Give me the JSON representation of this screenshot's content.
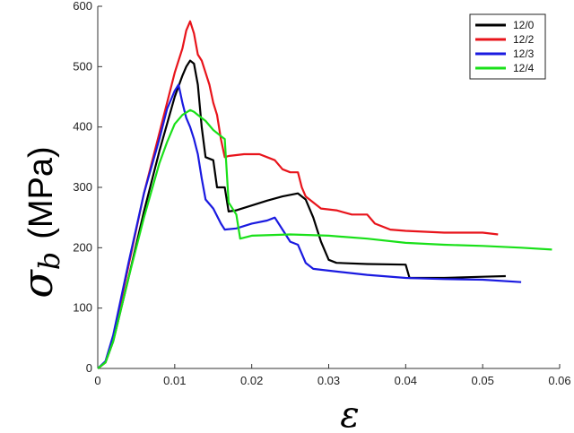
{
  "chart_data": {
    "type": "line",
    "ylabel": {
      "symbol": "σ",
      "subscript": "b",
      "unit": "(MPa)"
    },
    "xlabel": "ε",
    "xlim": [
      0,
      0.06
    ],
    "ylim": [
      0,
      600
    ],
    "xticks": [
      "0",
      "0.01",
      "0.02",
      "0.03",
      "0.04",
      "0.05",
      "0.06"
    ],
    "yticks": [
      "0",
      "100",
      "200",
      "300",
      "400",
      "500",
      "600"
    ],
    "legend_position": "top-right",
    "series": [
      {
        "name": "12/0",
        "color": "#000000",
        "points": [
          [
            0,
            0
          ],
          [
            0.001,
            10
          ],
          [
            0.002,
            45
          ],
          [
            0.004,
            150
          ],
          [
            0.006,
            260
          ],
          [
            0.008,
            360
          ],
          [
            0.01,
            450
          ],
          [
            0.011,
            485
          ],
          [
            0.0115,
            500
          ],
          [
            0.012,
            510
          ],
          [
            0.0125,
            505
          ],
          [
            0.013,
            470
          ],
          [
            0.0135,
            400
          ],
          [
            0.014,
            350
          ],
          [
            0.015,
            345
          ],
          [
            0.0155,
            300
          ],
          [
            0.0165,
            300
          ],
          [
            0.017,
            260
          ],
          [
            0.018,
            262
          ],
          [
            0.02,
            270
          ],
          [
            0.022,
            278
          ],
          [
            0.024,
            285
          ],
          [
            0.026,
            290
          ],
          [
            0.027,
            280
          ],
          [
            0.028,
            250
          ],
          [
            0.029,
            210
          ],
          [
            0.03,
            180
          ],
          [
            0.031,
            175
          ],
          [
            0.035,
            173
          ],
          [
            0.04,
            172
          ],
          [
            0.0405,
            150
          ],
          [
            0.045,
            150
          ],
          [
            0.05,
            152
          ],
          [
            0.053,
            153
          ]
        ]
      },
      {
        "name": "12/2",
        "color": "#e8141b",
        "points": [
          [
            0,
            0
          ],
          [
            0.001,
            10
          ],
          [
            0.002,
            50
          ],
          [
            0.004,
            170
          ],
          [
            0.006,
            290
          ],
          [
            0.008,
            390
          ],
          [
            0.01,
            490
          ],
          [
            0.011,
            530
          ],
          [
            0.0115,
            560
          ],
          [
            0.012,
            575
          ],
          [
            0.0125,
            555
          ],
          [
            0.013,
            520
          ],
          [
            0.0135,
            510
          ],
          [
            0.014,
            490
          ],
          [
            0.0145,
            470
          ],
          [
            0.015,
            440
          ],
          [
            0.0155,
            420
          ],
          [
            0.016,
            380
          ],
          [
            0.0165,
            350
          ],
          [
            0.017,
            352
          ],
          [
            0.019,
            355
          ],
          [
            0.021,
            355
          ],
          [
            0.022,
            350
          ],
          [
            0.023,
            345
          ],
          [
            0.024,
            330
          ],
          [
            0.025,
            325
          ],
          [
            0.026,
            325
          ],
          [
            0.0265,
            300
          ],
          [
            0.027,
            285
          ],
          [
            0.029,
            265
          ],
          [
            0.031,
            262
          ],
          [
            0.033,
            255
          ],
          [
            0.035,
            255
          ],
          [
            0.036,
            240
          ],
          [
            0.038,
            230
          ],
          [
            0.04,
            228
          ],
          [
            0.045,
            225
          ],
          [
            0.05,
            225
          ],
          [
            0.052,
            222
          ]
        ]
      },
      {
        "name": "12/3",
        "color": "#1a1ae0",
        "points": [
          [
            0,
            0
          ],
          [
            0.001,
            12
          ],
          [
            0.002,
            55
          ],
          [
            0.004,
            175
          ],
          [
            0.006,
            290
          ],
          [
            0.008,
            380
          ],
          [
            0.009,
            430
          ],
          [
            0.01,
            460
          ],
          [
            0.0105,
            470
          ],
          [
            0.011,
            440
          ],
          [
            0.0115,
            415
          ],
          [
            0.012,
            400
          ],
          [
            0.0125,
            380
          ],
          [
            0.013,
            355
          ],
          [
            0.0135,
            315
          ],
          [
            0.014,
            280
          ],
          [
            0.015,
            265
          ],
          [
            0.016,
            240
          ],
          [
            0.0165,
            230
          ],
          [
            0.018,
            232
          ],
          [
            0.02,
            240
          ],
          [
            0.022,
            245
          ],
          [
            0.023,
            250
          ],
          [
            0.024,
            230
          ],
          [
            0.025,
            210
          ],
          [
            0.026,
            205
          ],
          [
            0.0265,
            190
          ],
          [
            0.027,
            175
          ],
          [
            0.028,
            165
          ],
          [
            0.03,
            162
          ],
          [
            0.035,
            155
          ],
          [
            0.04,
            150
          ],
          [
            0.045,
            148
          ],
          [
            0.05,
            147
          ],
          [
            0.055,
            143
          ]
        ]
      },
      {
        "name": "12/4",
        "color": "#19e019",
        "points": [
          [
            0,
            0
          ],
          [
            0.001,
            10
          ],
          [
            0.002,
            45
          ],
          [
            0.004,
            150
          ],
          [
            0.006,
            250
          ],
          [
            0.008,
            340
          ],
          [
            0.009,
            375
          ],
          [
            0.01,
            405
          ],
          [
            0.011,
            420
          ],
          [
            0.012,
            428
          ],
          [
            0.0125,
            425
          ],
          [
            0.013,
            420
          ],
          [
            0.014,
            410
          ],
          [
            0.015,
            395
          ],
          [
            0.016,
            385
          ],
          [
            0.0165,
            380
          ],
          [
            0.017,
            275
          ],
          [
            0.018,
            255
          ],
          [
            0.0185,
            215
          ],
          [
            0.02,
            220
          ],
          [
            0.025,
            222
          ],
          [
            0.03,
            220
          ],
          [
            0.035,
            215
          ],
          [
            0.04,
            208
          ],
          [
            0.045,
            205
          ],
          [
            0.05,
            203
          ],
          [
            0.055,
            200
          ],
          [
            0.059,
            197
          ]
        ]
      }
    ]
  }
}
